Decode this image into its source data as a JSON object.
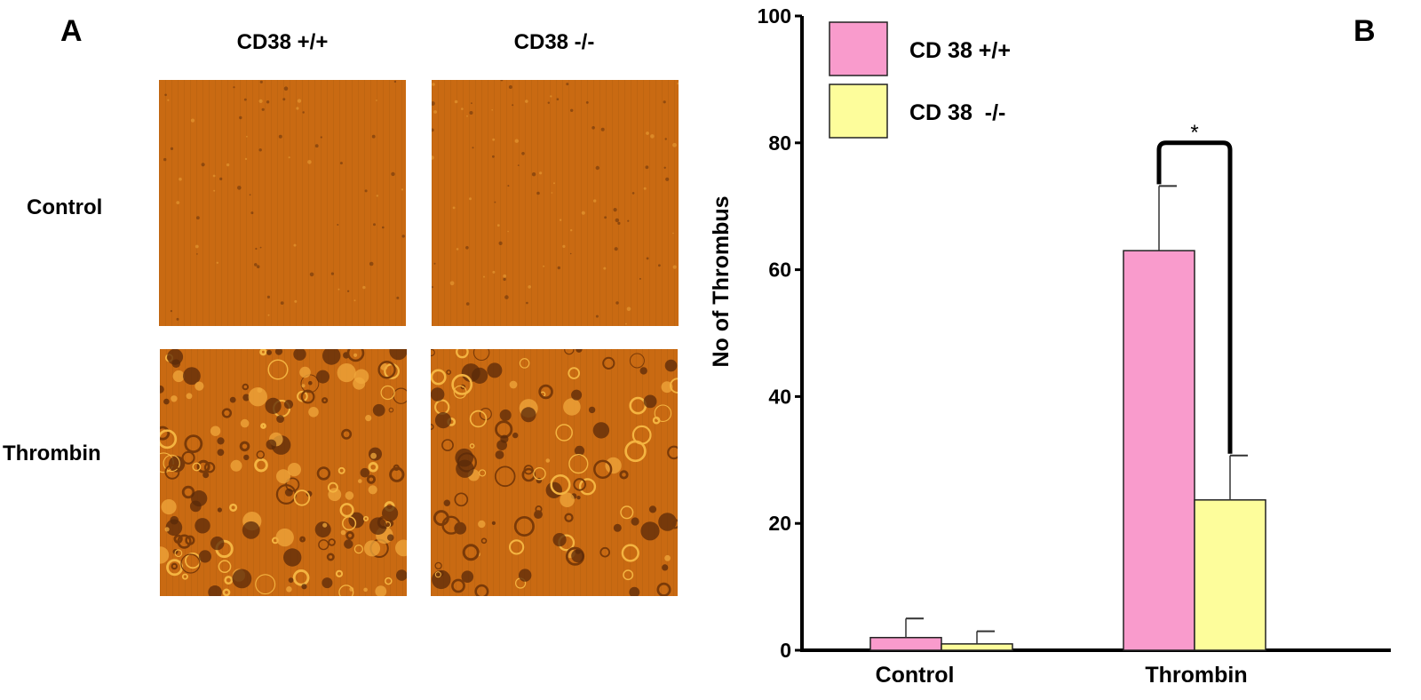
{
  "panel_a": {
    "letter": "A",
    "columns": [
      "CD38 +/+",
      "CD38 -/-"
    ],
    "rows": [
      "Control",
      "Thrombin"
    ],
    "image_descriptions": []
  },
  "panel_b": {
    "letter": "B"
  },
  "colors": {
    "micro_base": "#c96a12",
    "cd38_pos": "#f99bcc",
    "cd38_neg": "#fdfd9b"
  },
  "chart_data": {
    "type": "bar",
    "title": "",
    "xlabel": "",
    "ylabel": "No of Thrombus",
    "categories": [
      "Control",
      "Thrombin"
    ],
    "series": [
      {
        "name": "CD 38 +/+",
        "color": "#f99bcc",
        "values": [
          2,
          63
        ],
        "errors": [
          3,
          10.2
        ]
      },
      {
        "name": "CD 38  -/-",
        "color": "#fdfd9b",
        "values": [
          1,
          23.7
        ],
        "errors": [
          2,
          7
        ]
      }
    ],
    "ylim": [
      0,
      100
    ],
    "yticks": [
      0,
      20,
      40,
      60,
      80,
      100
    ],
    "legend_position": "top-left",
    "significance": {
      "label": "*",
      "category": "Thrombin"
    }
  }
}
